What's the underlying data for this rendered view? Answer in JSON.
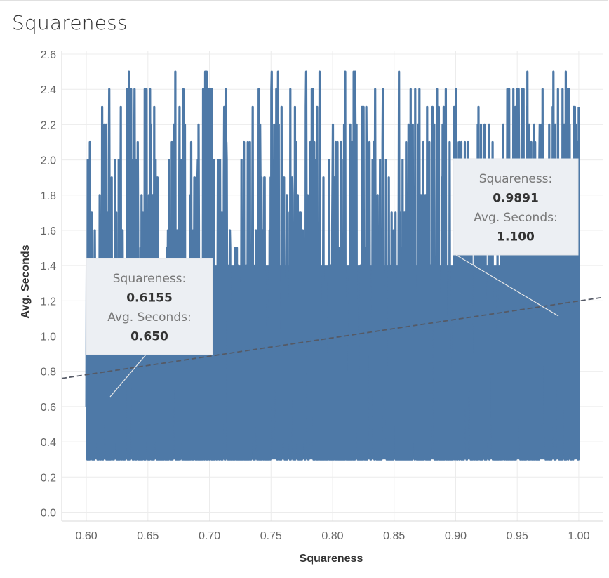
{
  "chart_data": {
    "type": "line",
    "title": "Squareness",
    "xlabel": "Squareness",
    "ylabel": "Avg. Seconds",
    "xlim": [
      0.58,
      1.02
    ],
    "ylim": [
      -0.05,
      2.62
    ],
    "x_ticks": [
      "0.60",
      "0.65",
      "0.70",
      "0.75",
      "0.80",
      "0.85",
      "0.90",
      "0.95",
      "1.00"
    ],
    "y_ticks": [
      "0.0",
      "0.2",
      "0.4",
      "0.6",
      "0.8",
      "1.0",
      "1.2",
      "1.4",
      "1.6",
      "1.8",
      "2.0",
      "2.2",
      "2.4",
      "2.6"
    ],
    "grid": true,
    "series": [
      {
        "color": "#4e79a7",
        "x_range": [
          0.6,
          1.0
        ],
        "y_min": 0.3,
        "y_max": 2.5,
        "dense_band": [
          0.3,
          1.4
        ]
      }
    ],
    "trend_line": {
      "color": "#555a66",
      "style": "dashed",
      "points": [
        [
          0.58,
          0.76
        ],
        [
          1.02,
          1.22
        ]
      ]
    },
    "annotations": [
      {
        "label_x": "Squareness:",
        "value_x": "0.6155",
        "label_y": "Avg. Seconds:",
        "value_y": "0.650",
        "point": [
          0.6155,
          0.65
        ]
      },
      {
        "label_x": "Squareness:",
        "value_x": "0.9891",
        "label_y": "Avg. Seconds:",
        "value_y": "1.100",
        "point": [
          0.9891,
          1.1
        ]
      }
    ]
  }
}
